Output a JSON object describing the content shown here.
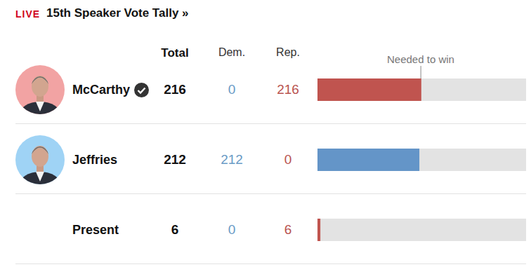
{
  "header": {
    "live": "LIVE",
    "title": "15th Speaker Vote Tally »"
  },
  "table": {
    "columns": [
      "Total",
      "Dem.",
      "Rep."
    ],
    "rows": [
      {
        "winner": true,
        "photo_color": "#f2a3a3",
        "dem": 0,
        "rep": 216
      },
      {
        "winner": false,
        "photo_color": "#9fd3f5",
        "dem": 212,
        "rep": 0
      },
      {
        "winner": false,
        "dem": 0,
        "rep": 6
      }
    ]
  },
  "chart_data": {
    "type": "bar",
    "orientation": "horizontal",
    "categories": [
      "McCarthy",
      "Jeffries",
      "Present"
    ],
    "values": [
      216,
      212,
      6
    ],
    "colors": [
      "#c0544f",
      "#6495c8",
      "#c0544f"
    ],
    "xlim": [
      0,
      434
    ],
    "tick_labels": false,
    "reference_line": {
      "value": 215,
      "label": "Needed to win"
    }
  }
}
